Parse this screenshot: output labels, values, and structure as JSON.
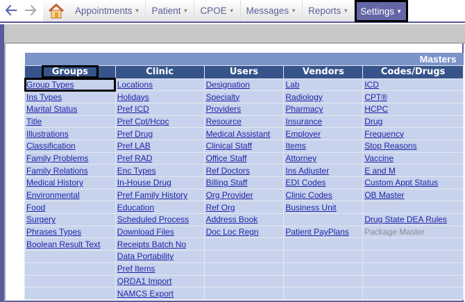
{
  "nav": {
    "menus": [
      {
        "label": "Appointments",
        "active": false
      },
      {
        "label": "Patient",
        "active": false
      },
      {
        "label": "CPOE",
        "active": false
      },
      {
        "label": "Messages",
        "active": false
      },
      {
        "label": "Reports",
        "active": false
      },
      {
        "label": "Settings",
        "active": true
      }
    ]
  },
  "masters": {
    "title": "Masters",
    "columns": [
      "Groups",
      "Clinic",
      "Users",
      "Vendors",
      "Codes/Drugs"
    ],
    "rows": [
      [
        "Group Types",
        "Locations",
        "Designation",
        "Lab",
        "ICD"
      ],
      [
        "Ins Types",
        "Holidays",
        "Specialty",
        "Radiology",
        "CPT®"
      ],
      [
        "Marital Status",
        "Pref ICD",
        "Providers",
        "Pharmacy",
        "HCPC"
      ],
      [
        "Title",
        "Pref Cpt/Hcpc",
        "Resource",
        "Insurance",
        "Drug"
      ],
      [
        "Illustrations",
        "Pref Drug",
        "Medical Assistant",
        "Employer",
        "Frequency"
      ],
      [
        "Classification",
        "Pref LAB",
        "Clinical Staff",
        "Items",
        "Stop Reasons"
      ],
      [
        "Family Problems",
        "Pref RAD",
        "Office Staff",
        "Attorney",
        "Vaccine"
      ],
      [
        "Family Relations",
        "Enc Types",
        "Ref Doctors",
        "Ins Adjuster",
        "E and M"
      ],
      [
        "Medical History",
        "In-House Drug",
        "Billing Staff",
        "EDI Codes",
        "Custom Appt Status"
      ],
      [
        "Environmental",
        "Pref Family History",
        "Org Provider",
        "Clinic Codes",
        "OB Master"
      ],
      [
        "Food",
        "Education",
        "Ref Org",
        "Business Unit",
        ""
      ],
      [
        "Surgery",
        "Scheduled Process",
        "Address Book",
        "",
        "Drug State DEA Rules"
      ],
      [
        "Phrases Types",
        "Download Files",
        "Doc Loc Regn",
        "Patient PayPlans",
        "Package Master"
      ],
      [
        "Boolean Result Text",
        "Receipts Batch No",
        "",
        "",
        ""
      ],
      [
        "",
        "Data Portability",
        "",
        "",
        ""
      ],
      [
        "",
        "Pref Items",
        "",
        "",
        ""
      ],
      [
        "",
        "QRDA1 Import",
        "",
        "",
        ""
      ],
      [
        "",
        "NAMCS Export",
        "",
        "",
        ""
      ]
    ],
    "disabled": [
      "Package Master"
    ]
  }
}
